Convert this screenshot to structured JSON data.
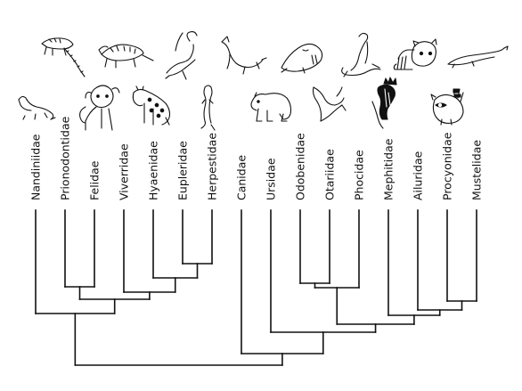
{
  "taxa": [
    {
      "label": "Nandiniidae",
      "icon": "nandinia-icon"
    },
    {
      "label": "Prionodontidae",
      "icon": "linsang-icon"
    },
    {
      "label": "Felidae",
      "icon": "lion-icon"
    },
    {
      "label": "Viverridae",
      "icon": "civet-icon"
    },
    {
      "label": "Hyaenidae",
      "icon": "hyena-icon"
    },
    {
      "label": "Eupleridae",
      "icon": "fossa-icon"
    },
    {
      "label": "Herpestidae",
      "icon": "meerkat-icon"
    },
    {
      "label": "Canidae",
      "icon": "wolf-icon"
    },
    {
      "label": "Ursidae",
      "icon": "bear-icon"
    },
    {
      "label": "Odobenidae",
      "icon": "walrus-icon"
    },
    {
      "label": "Otariidae",
      "icon": "sea-lion-icon"
    },
    {
      "label": "Phocidae",
      "icon": "seal-icon"
    },
    {
      "label": "Mephitidae",
      "icon": "skunk-icon"
    },
    {
      "label": "Ailuridae",
      "icon": "red-panda-icon"
    },
    {
      "label": "Procyonidae",
      "icon": "raccoon-icon"
    },
    {
      "label": "Mustelidae",
      "icon": "weasel-icon"
    }
  ],
  "tree": {
    "root": [
      "feliformia",
      "caniformia"
    ],
    "feliformia": [
      "Nandiniidae",
      "feloidea_viverroidea"
    ],
    "feloidea_viverroidea": [
      "feloidea",
      "viverroidea"
    ],
    "feloidea": [
      "Prionodontidae",
      "Felidae"
    ],
    "viverroidea": [
      "Viverridae",
      "herpestoidea"
    ],
    "herpestoidea": [
      "Hyaenidae",
      "euplerid_herpestid"
    ],
    "euplerid_herpestid": [
      "Eupleridae",
      "Herpestidae"
    ],
    "caniformia": [
      "Canidae",
      "arctoidea"
    ],
    "arctoidea": [
      "Ursidae",
      "pinniped_musteloid"
    ],
    "pinniped_musteloid": [
      "pinnipedia",
      "musteloidea"
    ],
    "pinnipedia": [
      "odo_ota",
      "Phocidae"
    ],
    "odo_ota": [
      "Odobenidae",
      "Otariidae"
    ],
    "musteloidea": [
      "Mephitidae",
      "ail_pro_mus"
    ],
    "ail_pro_mus": [
      "Ailuridae",
      "pro_mus"
    ],
    "pro_mus": [
      "Procyonidae",
      "Mustelidae"
    ]
  },
  "colors": {
    "line": "#111111",
    "background": "#ffffff"
  }
}
